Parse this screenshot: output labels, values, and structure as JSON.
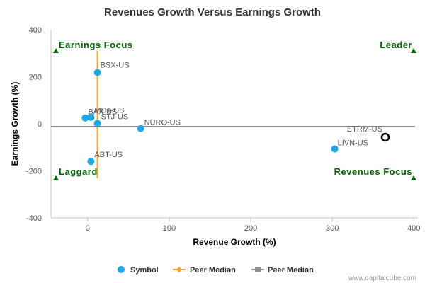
{
  "chart_data": {
    "type": "scatter",
    "title": "Revenues Growth Versus Earnings Growth",
    "xlabel": "Revenue Growth (%)",
    "ylabel": "Earnings Growth (%)",
    "xlim": [
      -45,
      405
    ],
    "ylim": [
      -400,
      400
    ],
    "xticks": [
      0,
      100,
      200,
      300,
      400
    ],
    "yticks": [
      -400,
      -200,
      0,
      200,
      400
    ],
    "points": [
      {
        "label": "BSX-US",
        "x": 12,
        "y": 218
      },
      {
        "label": "BAX-US",
        "x": -3,
        "y": 25
      },
      {
        "label": "MDT-US",
        "x": 4,
        "y": 28
      },
      {
        "label": "STJ-US",
        "x": 12,
        "y": 2
      },
      {
        "label": "NURO-US",
        "x": 65,
        "y": -20
      },
      {
        "label": "ABT-US",
        "x": 4,
        "y": -160
      },
      {
        "label": "LIVN-US",
        "x": 303,
        "y": -107
      }
    ],
    "highlight": {
      "label": "ETRM-US",
      "x": 365,
      "y": -57
    },
    "peer_median_x": 12,
    "peer_median_y": -12,
    "quadrants": {
      "top_left": "Earnings Focus",
      "top_right": "Leader",
      "bottom_left": "Laggard",
      "bottom_right": "Revenues Focus"
    },
    "legend": [
      {
        "name": "Symbol",
        "color": "#1ea7e8"
      },
      {
        "name": "Peer Median",
        "color": "#f5a623"
      },
      {
        "name": "Peer Median",
        "color": "#909090"
      }
    ],
    "credit": "www.capitalcube.com",
    "grid": false,
    "legend_position": "bottom"
  }
}
